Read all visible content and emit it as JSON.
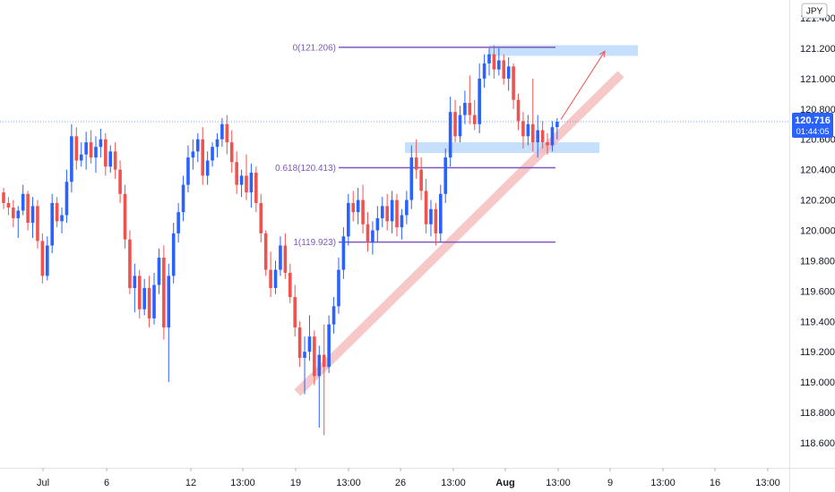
{
  "currency_label": "JPY",
  "last_price": "120.716",
  "countdown": "01:44:05",
  "colors": {
    "bull": "#2962ff",
    "bear": "#ef5350",
    "fib": "#7e57c2",
    "zone": "#bbd9fb",
    "trend": "#f4b6b6",
    "arrow": "#ef5350",
    "tag": "#2962ff"
  },
  "fib_levels": [
    {
      "label": "0(121.206)",
      "price": 121.206
    },
    {
      "label": "0.618(120.413)",
      "price": 120.413
    },
    {
      "label": "1(119.923)",
      "price": 119.923
    }
  ],
  "chart_data": {
    "type": "candlestick",
    "instrument_quote": "JPY",
    "ylim": [
      118.45,
      121.5
    ],
    "y_ticks": [
      "121.400",
      "121.200",
      "121.000",
      "120.800",
      "120.600",
      "120.400",
      "120.200",
      "120.000",
      "119.800",
      "119.600",
      "119.400",
      "119.200",
      "119.000",
      "118.800",
      "118.600"
    ],
    "x_ticks": [
      "Jul",
      "6",
      "12",
      "13:00",
      "19",
      "13:00",
      "26",
      "13:00",
      "Aug",
      "13:00",
      "9",
      "13:00",
      "16",
      "13:00"
    ],
    "support_zones": [
      {
        "from": 121.15,
        "to": 121.22
      },
      {
        "from": 120.51,
        "to": 120.58
      }
    ],
    "trendline": {
      "from": 118.93,
      "to": 121.03
    },
    "projection_arrow": {
      "from": 120.73,
      "to": 121.18
    },
    "candles": [
      [
        120.25,
        120.28,
        120.14,
        120.18
      ],
      [
        120.18,
        120.22,
        120.1,
        120.15
      ],
      [
        120.15,
        120.2,
        120.02,
        120.08
      ],
      [
        120.08,
        120.16,
        119.95,
        120.13
      ],
      [
        120.13,
        120.3,
        120.1,
        120.24
      ],
      [
        120.24,
        120.26,
        120.0,
        120.05
      ],
      [
        120.05,
        120.22,
        119.95,
        120.16
      ],
      [
        120.16,
        120.2,
        119.88,
        119.93
      ],
      [
        119.93,
        119.98,
        119.65,
        119.7
      ],
      [
        119.7,
        119.96,
        119.67,
        119.9
      ],
      [
        119.9,
        120.24,
        119.85,
        120.18
      ],
      [
        120.18,
        120.22,
        120.02,
        120.06
      ],
      [
        120.06,
        120.15,
        119.98,
        120.1
      ],
      [
        120.1,
        120.4,
        120.05,
        120.32
      ],
      [
        120.32,
        120.7,
        120.25,
        120.62
      ],
      [
        120.62,
        120.68,
        120.4,
        120.46
      ],
      [
        120.46,
        120.58,
        120.42,
        120.5
      ],
      [
        120.5,
        120.65,
        120.4,
        120.58
      ],
      [
        120.58,
        120.66,
        120.44,
        120.48
      ],
      [
        120.48,
        120.62,
        120.38,
        120.55
      ],
      [
        120.55,
        120.67,
        120.48,
        120.6
      ],
      [
        120.6,
        120.64,
        120.36,
        120.42
      ],
      [
        120.42,
        120.56,
        120.38,
        120.52
      ],
      [
        120.52,
        120.58,
        120.34,
        120.4
      ],
      [
        120.4,
        120.46,
        120.18,
        120.24
      ],
      [
        120.24,
        120.3,
        119.88,
        119.94
      ],
      [
        119.94,
        120.0,
        119.58,
        119.62
      ],
      [
        119.62,
        119.78,
        119.46,
        119.7
      ],
      [
        119.7,
        119.74,
        119.42,
        119.48
      ],
      [
        119.48,
        119.68,
        119.44,
        119.62
      ],
      [
        119.62,
        119.7,
        119.36,
        119.42
      ],
      [
        119.42,
        119.72,
        119.38,
        119.64
      ],
      [
        119.64,
        119.88,
        119.58,
        119.82
      ],
      [
        119.82,
        119.9,
        119.28,
        119.36
      ],
      [
        119.36,
        119.78,
        119.0,
        119.7
      ],
      [
        119.7,
        120.05,
        119.65,
        119.98
      ],
      [
        119.98,
        120.18,
        119.92,
        120.12
      ],
      [
        120.12,
        120.36,
        120.06,
        120.3
      ],
      [
        120.3,
        120.56,
        120.25,
        120.48
      ],
      [
        120.48,
        120.6,
        120.4,
        120.52
      ],
      [
        120.52,
        120.64,
        120.45,
        120.6
      ],
      [
        120.6,
        120.68,
        120.3,
        120.36
      ],
      [
        120.36,
        120.52,
        120.3,
        120.46
      ],
      [
        120.46,
        120.58,
        120.42,
        120.55
      ],
      [
        120.55,
        120.64,
        120.48,
        120.6
      ],
      [
        120.6,
        120.74,
        120.55,
        120.7
      ],
      [
        120.7,
        120.76,
        120.5,
        120.58
      ],
      [
        120.58,
        120.66,
        120.38,
        120.45
      ],
      [
        120.45,
        120.52,
        120.24,
        120.3
      ],
      [
        120.3,
        120.4,
        120.22,
        120.36
      ],
      [
        120.36,
        120.5,
        120.2,
        120.25
      ],
      [
        120.25,
        120.44,
        120.15,
        120.38
      ],
      [
        120.38,
        120.42,
        120.12,
        120.18
      ],
      [
        120.18,
        120.24,
        119.92,
        119.98
      ],
      [
        119.98,
        120.0,
        119.7,
        119.74
      ],
      [
        119.74,
        119.86,
        119.56,
        119.62
      ],
      [
        119.62,
        119.8,
        119.58,
        119.74
      ],
      [
        119.74,
        119.96,
        119.7,
        119.9
      ],
      [
        119.9,
        119.98,
        119.68,
        119.72
      ],
      [
        119.72,
        119.78,
        119.52,
        119.56
      ],
      [
        119.56,
        119.64,
        119.3,
        119.36
      ],
      [
        119.36,
        119.4,
        119.1,
        119.16
      ],
      [
        119.16,
        119.3,
        118.92,
        119.2
      ],
      [
        119.2,
        119.44,
        119.14,
        119.3
      ],
      [
        119.3,
        119.34,
        118.98,
        119.04
      ],
      [
        119.04,
        119.24,
        118.7,
        119.18
      ],
      [
        119.18,
        119.38,
        118.65,
        119.1
      ],
      [
        119.1,
        119.44,
        119.06,
        119.38
      ],
      [
        119.38,
        119.56,
        119.32,
        119.5
      ],
      [
        119.5,
        119.82,
        119.45,
        119.74
      ],
      [
        119.74,
        120.02,
        119.68,
        119.96
      ],
      [
        119.96,
        120.24,
        119.9,
        120.18
      ],
      [
        120.18,
        120.26,
        120.06,
        120.12
      ],
      [
        120.12,
        120.28,
        120.04,
        120.2
      ],
      [
        120.2,
        120.3,
        119.98,
        120.04
      ],
      [
        120.04,
        120.12,
        119.86,
        119.92
      ],
      [
        119.92,
        120.06,
        119.84,
        120.0
      ],
      [
        120.0,
        120.16,
        119.92,
        120.08
      ],
      [
        120.08,
        120.22,
        120.02,
        120.16
      ],
      [
        120.16,
        120.24,
        120.0,
        120.06
      ],
      [
        120.06,
        120.26,
        119.98,
        120.2
      ],
      [
        120.2,
        120.24,
        119.96,
        120.02
      ],
      [
        120.02,
        120.14,
        119.94,
        120.1
      ],
      [
        120.1,
        120.26,
        120.04,
        120.2
      ],
      [
        120.2,
        120.56,
        120.14,
        120.48
      ],
      [
        120.48,
        120.6,
        120.34,
        120.4
      ],
      [
        120.4,
        120.48,
        120.2,
        120.26
      ],
      [
        120.26,
        120.34,
        119.98,
        120.04
      ],
      [
        120.04,
        120.2,
        119.96,
        120.14
      ],
      [
        120.14,
        120.18,
        119.9,
        119.98
      ],
      [
        119.98,
        120.3,
        119.92,
        120.24
      ],
      [
        120.24,
        120.54,
        120.18,
        120.48
      ],
      [
        120.48,
        120.88,
        120.42,
        120.78
      ],
      [
        120.78,
        120.86,
        120.58,
        120.62
      ],
      [
        120.62,
        120.82,
        120.58,
        120.76
      ],
      [
        120.76,
        120.92,
        120.7,
        120.84
      ],
      [
        120.84,
        121.02,
        120.7,
        120.76
      ],
      [
        120.76,
        120.86,
        120.66,
        120.7
      ],
      [
        120.7,
        121.1,
        120.64,
        121.0
      ],
      [
        121.0,
        121.16,
        120.94,
        121.1
      ],
      [
        121.1,
        121.2,
        121.02,
        121.16
      ],
      [
        121.16,
        121.22,
        121.0,
        121.06
      ],
      [
        121.06,
        121.2,
        121.02,
        121.12
      ],
      [
        121.12,
        121.16,
        120.96,
        121.0
      ],
      [
        121.0,
        121.14,
        120.92,
        121.08
      ],
      [
        121.08,
        121.1,
        120.8,
        120.86
      ],
      [
        120.86,
        120.9,
        120.66,
        120.72
      ],
      [
        120.72,
        120.78,
        120.54,
        120.62
      ],
      [
        120.62,
        120.76,
        120.56,
        120.7
      ],
      [
        120.7,
        121.0,
        120.52,
        120.58
      ],
      [
        120.58,
        120.76,
        120.48,
        120.66
      ],
      [
        120.66,
        120.72,
        120.54,
        120.58
      ],
      [
        120.58,
        120.64,
        120.5,
        120.56
      ],
      [
        120.56,
        120.72,
        120.52,
        120.68
      ],
      [
        120.68,
        120.74,
        120.6,
        120.716
      ]
    ]
  }
}
